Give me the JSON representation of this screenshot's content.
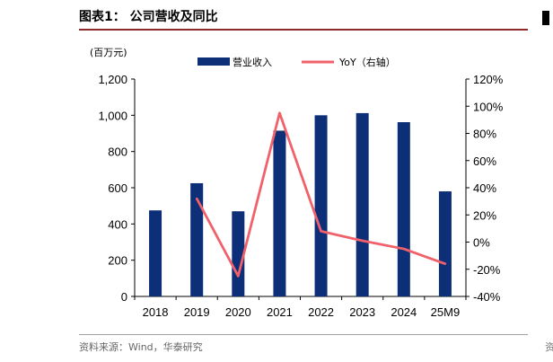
{
  "figure": {
    "title": "图表1：  公司营收及同比",
    "source_label": "资料来源：",
    "source_text": "Wind，华泰研究",
    "edge_text": "资"
  },
  "colors": {
    "bar": "#0d2f78",
    "line": "#f0616a",
    "title_rule": "#8f2a2a"
  },
  "chart_data": {
    "type": "bar+line",
    "unit_label": "(百万元)",
    "categories": [
      "2018",
      "2019",
      "2020",
      "2021",
      "2022",
      "2023",
      "2024",
      "25M9"
    ],
    "series": [
      {
        "name": "营业收入",
        "type": "bar",
        "axis": "left",
        "values": [
          475,
          625,
          470,
          915,
          1000,
          1012,
          962,
          580
        ]
      },
      {
        "name": "YoY（右轴）",
        "type": "line",
        "axis": "right",
        "values": [
          null,
          32,
          -25,
          95,
          8,
          1,
          -5,
          -16
        ]
      }
    ],
    "y_left": {
      "min": 0,
      "max": 1200,
      "step": 200,
      "ticks": [
        "0",
        "200",
        "400",
        "600",
        "800",
        "1,000",
        "1,200"
      ]
    },
    "y_right": {
      "min": -40,
      "max": 120,
      "step": 20,
      "ticks": [
        "-40%",
        "-20%",
        "0%",
        "20%",
        "40%",
        "60%",
        "80%",
        "100%",
        "120%"
      ]
    },
    "legend_position": "top-center",
    "grid": false
  }
}
